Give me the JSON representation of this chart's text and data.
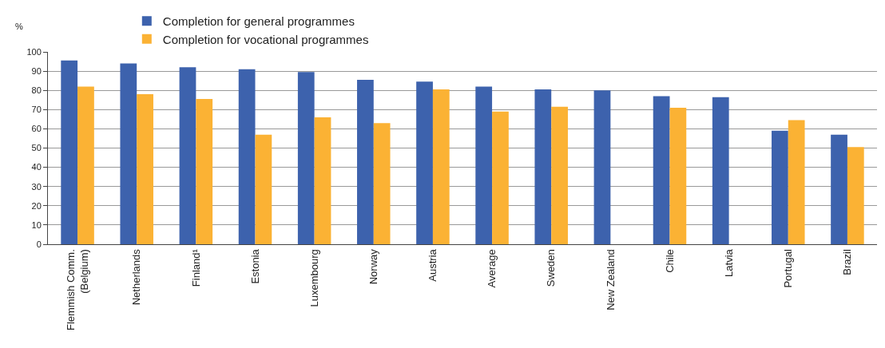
{
  "chart_data": {
    "type": "bar",
    "ylabel": "%",
    "categories": [
      "Flemmish Comm.\n(Belgium)",
      "Netherlands",
      "Finland¹",
      "Estonia",
      "Luxembourg",
      "Norway",
      "Austria",
      "Average",
      "Sweden",
      "New Zealand",
      "Chile",
      "Latvia",
      "Portugal",
      "Brazil"
    ],
    "series": [
      {
        "name": "Completion for general programmes",
        "color": "#3d62ad",
        "values": [
          95.5,
          94,
          92,
          91,
          89.5,
          85.5,
          84.5,
          82,
          80.5,
          80,
          77,
          76.5,
          59,
          57
        ]
      },
      {
        "name": "Completion for vocational programmes",
        "color": "#fbb234",
        "values": [
          82,
          78,
          75.5,
          57,
          66,
          63,
          80.5,
          69,
          71.5,
          null,
          71,
          null,
          64.5,
          50.5
        ]
      }
    ],
    "ylim": [
      0,
      100
    ],
    "yticks": [
      0,
      10,
      20,
      30,
      40,
      50,
      60,
      70,
      80,
      90,
      100
    ],
    "grid": "y",
    "legend": "top"
  }
}
